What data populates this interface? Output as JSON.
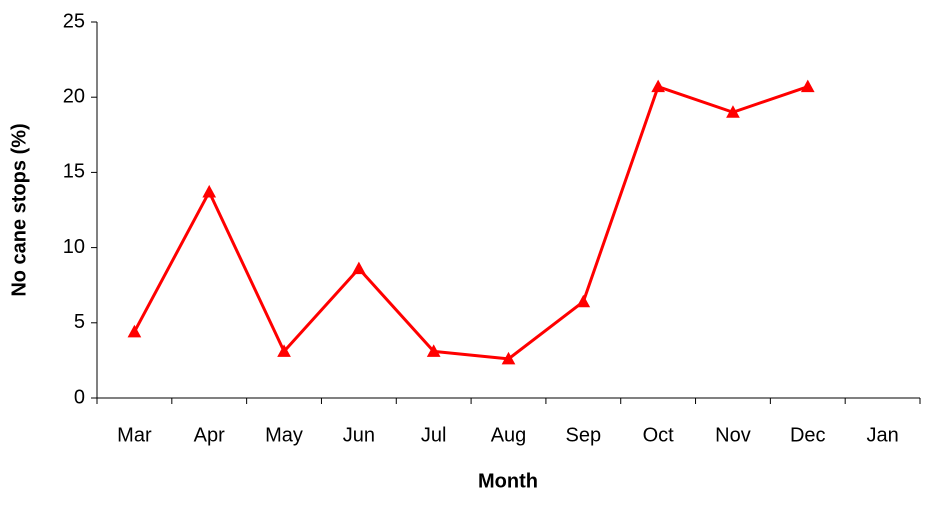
{
  "chart_data": {
    "type": "line",
    "x_label": "Month",
    "y_label": "No cane stops (%)",
    "categories": [
      "Mar",
      "Apr",
      "May",
      "Jun",
      "Jul",
      "Aug",
      "Sep",
      "Oct",
      "Nov",
      "Dec",
      "Jan"
    ],
    "series": [
      {
        "name": "No cane stops",
        "color": "#ff0000",
        "values": [
          4.4,
          13.7,
          3.1,
          8.6,
          3.1,
          2.6,
          6.4,
          20.7,
          19.0,
          20.7,
          null
        ]
      }
    ],
    "ylim": [
      0,
      25
    ],
    "yticks": [
      0,
      5,
      10,
      15,
      20,
      25
    ],
    "grid": false,
    "legend": false
  }
}
